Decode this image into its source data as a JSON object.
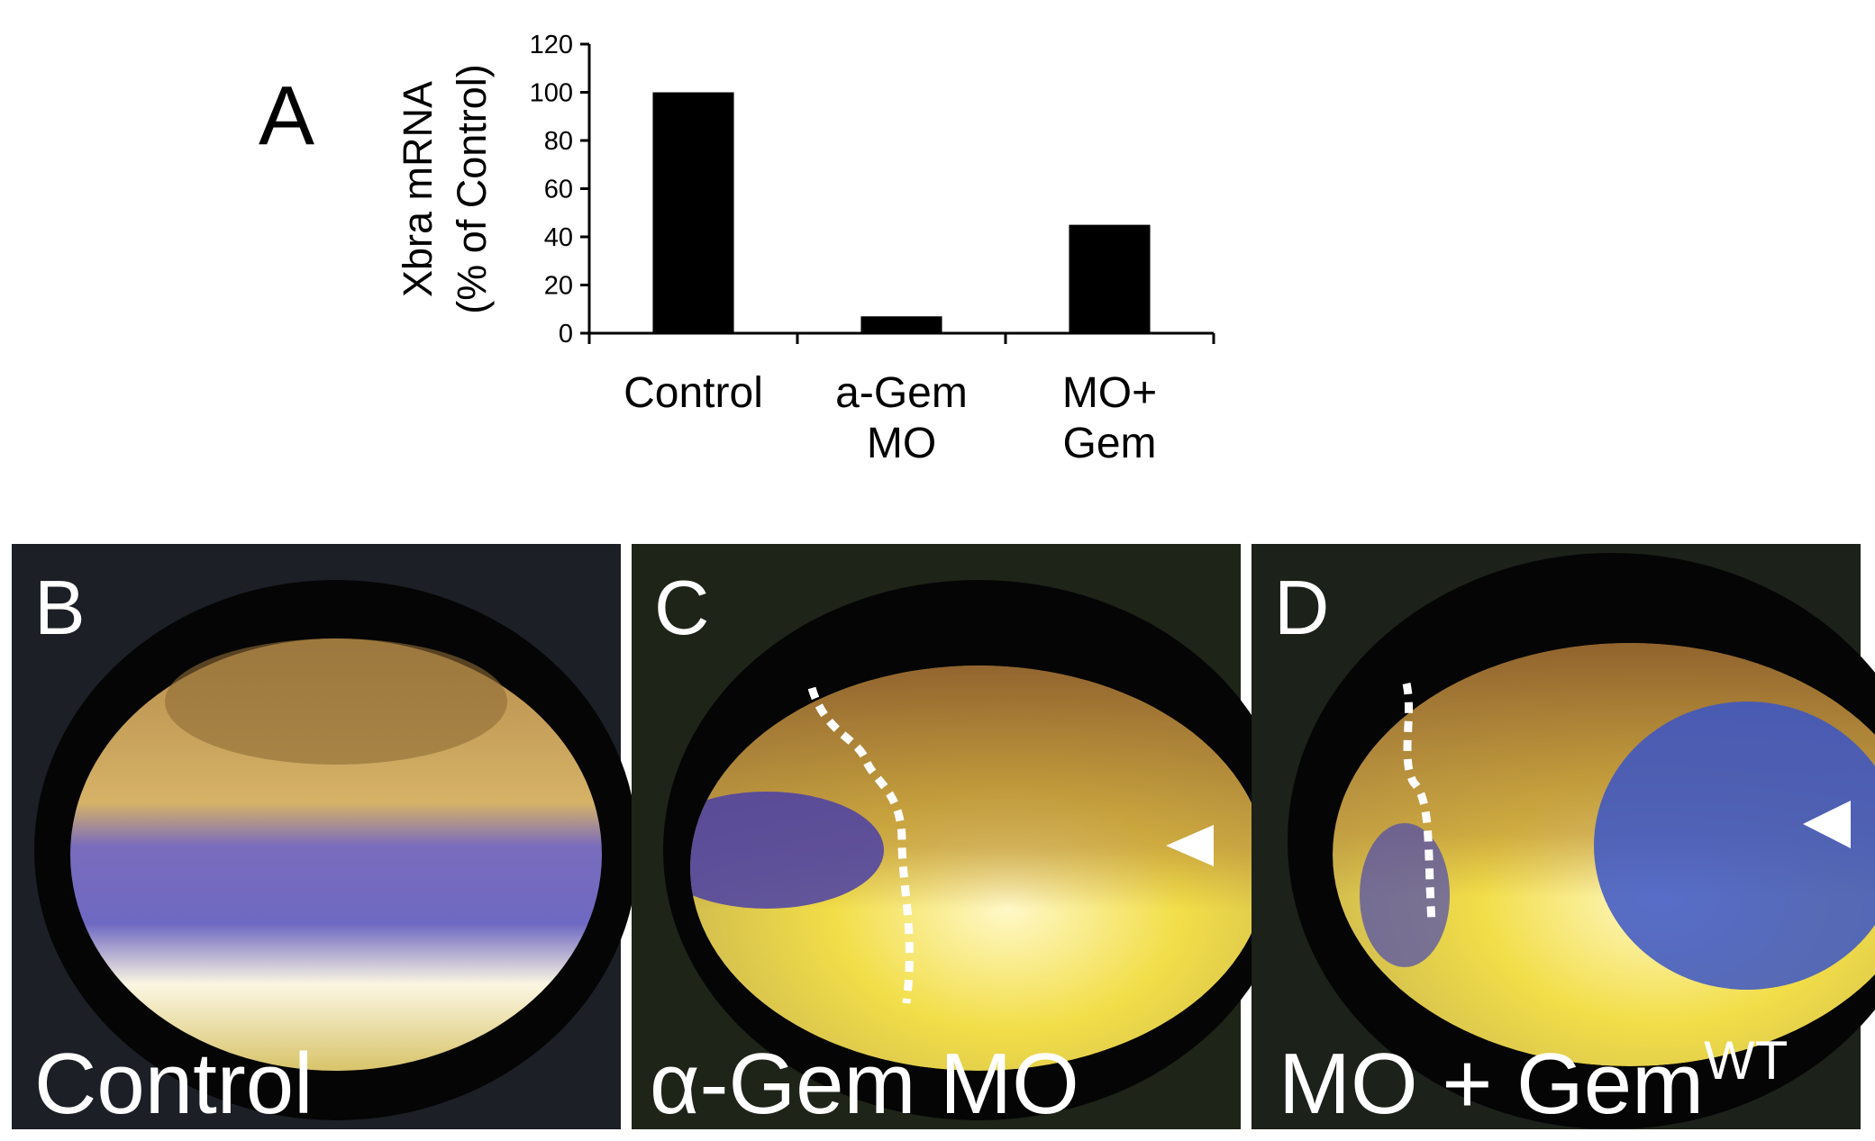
{
  "chart_data": {
    "type": "bar",
    "panel_label": "A",
    "ylabel": [
      "Xbra mRNA",
      "(% of Control)"
    ],
    "categories": [
      [
        "Control"
      ],
      [
        "a-Gem",
        "MO"
      ],
      [
        "MO+",
        "Gem"
      ]
    ],
    "values": [
      100,
      7,
      45
    ],
    "color": "#000000",
    "ylim": [
      0,
      120
    ],
    "yticks": [
      0,
      20,
      40,
      60,
      80,
      100,
      120
    ],
    "grid": false
  },
  "panels": [
    {
      "letter": "B",
      "caption": "Control"
    },
    {
      "letter": "C",
      "caption": "α-Gem MO"
    },
    {
      "letter": "D",
      "caption": "MO + Gem",
      "caption_sup": "WT"
    }
  ]
}
